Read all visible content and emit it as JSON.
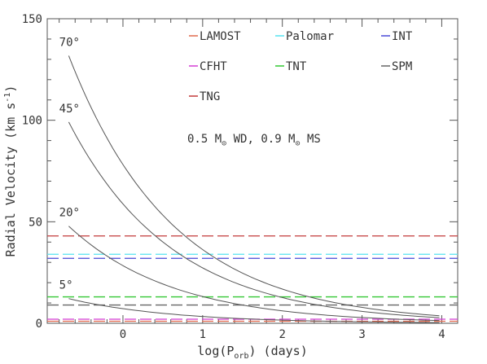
{
  "chart_data": {
    "type": "line",
    "xlabel": "log(P",
    "xlabel_sub": "orb",
    "xlabel_suffix": ") (days)",
    "ylabel": "Radial Velocity (km s",
    "ylabel_sup": "-1",
    "ylabel_suffix": ")",
    "xlim": [
      -0.95,
      4.2
    ],
    "ylim": [
      0,
      150
    ],
    "x_ticks": [
      0,
      1,
      2,
      3,
      4
    ],
    "x_tick_labels": [
      "0",
      "1",
      "2",
      "3",
      "4"
    ],
    "y_ticks": [
      0,
      50,
      100,
      150
    ],
    "y_tick_labels": [
      "0",
      "50",
      "100",
      "150"
    ],
    "grid": false,
    "annotation": {
      "pre": "0.5 M",
      "sub1": "⊙",
      "mid": " WD, 0.9 M",
      "sub2": "⊙",
      "post": " MS"
    },
    "curves": [
      {
        "name": "70°",
        "x_range": [
          -0.68,
          4.0
        ],
        "k_at_logP0": 78.2
      },
      {
        "name": "45°",
        "x_range": [
          -0.68,
          4.0
        ],
        "k_at_logP0": 58.8
      },
      {
        "name": "20°",
        "x_range": [
          -0.68,
          4.0
        ],
        "k_at_logP0": 28.4
      },
      {
        "name": "5°",
        "x_range": [
          -0.68,
          4.0
        ],
        "k_at_logP0": 7.2
      }
    ],
    "curve_color": "#555555",
    "series": [
      {
        "name": "LAMOST",
        "value": 1.0,
        "color": "#e06a4e"
      },
      {
        "name": "Palomar",
        "value": 34.0,
        "color": "#55e3f0"
      },
      {
        "name": "INT",
        "value": 32.0,
        "color": "#4a4ad8"
      },
      {
        "name": "CFHT",
        "value": 2.0,
        "color": "#d43fd4"
      },
      {
        "name": "TNT",
        "value": 13.0,
        "color": "#33c833"
      },
      {
        "name": "SPM",
        "value": 9.0,
        "color": "#666666"
      },
      {
        "name": "TNG",
        "value": 43.0,
        "color": "#c23a3a"
      }
    ]
  }
}
